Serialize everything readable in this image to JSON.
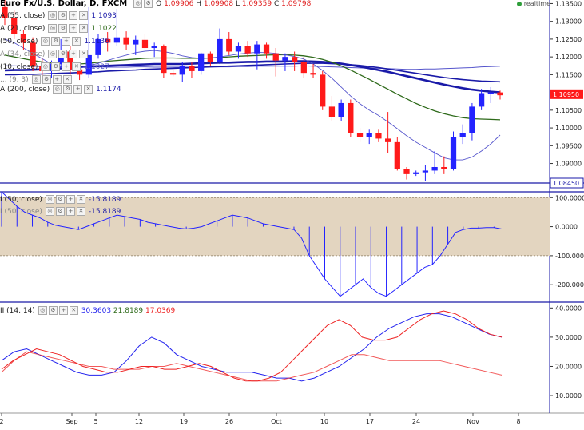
{
  "header": {
    "title": "Euro Fx/U.S. Dollar, D, FXCM",
    "ohlc": {
      "o_label": "O",
      "o": "1.09906",
      "h_label": "H",
      "h": "1.09908",
      "l_label": "L",
      "l": "1.09359",
      "c_label": "C",
      "c": "1.09798"
    },
    "realtime": "realtime"
  },
  "legends": {
    "ma55": {
      "label": "A (55, close)",
      "value": "1.1093"
    },
    "ma21": {
      "label": "A (21, close)",
      "value": "1.1022"
    },
    "ma50": {
      "label": "(50, close)",
      "value": "1.1136"
    },
    "ma34": {
      "label": "A (34, close)",
      "value": ""
    },
    "ma10": {
      "label": "(10, close)",
      "value": "1.1027"
    },
    "ma_x": {
      "label": "... (9, 3)",
      "value": ""
    },
    "ma200": {
      "label": "A (200, close)",
      "value": "1.1174"
    },
    "cci_a": {
      "label": "I (50, close)",
      "value": "-15.8189"
    },
    "cci_b": {
      "label": "I (50, close)",
      "value": "-15.8189"
    },
    "dmi": {
      "label": "II (14, 14)",
      "v1": "30.3603",
      "v2": "21.8189",
      "v3": "17.0369"
    }
  },
  "colors": {
    "up": "#2323ff",
    "down": "#ff1a1a",
    "band": "#e3d5c0",
    "ma_dark": "#1a1aa8",
    "ma_green": "#2e6a1a",
    "ma_thin": "#5555cc",
    "plus_di": "#2222ee",
    "minus_di": "#ee2222"
  },
  "chart_data": [
    {
      "type": "candlestick",
      "title": "Euro Fx/U.S. Dollar, D, FXCM",
      "y_ticks": [
        "1.13500",
        "1.13000",
        "1.12500",
        "1.12000",
        "1.11500",
        "1.11000",
        "1.10500",
        "1.10000",
        "1.09500",
        "1.09000"
      ],
      "ylim": [
        1.0845,
        1.136
      ],
      "price_labels": {
        "last": "1.10950",
        "marker": "1.08450"
      },
      "x_labels": [
        "2",
        "Sep",
        "5",
        "12",
        "19",
        "26",
        "Oct",
        "10",
        "17",
        "24",
        "Nov",
        "8"
      ],
      "candles": [
        {
          "o": 1.134,
          "h": 1.1362,
          "l": 1.129,
          "c": 1.131
        },
        {
          "o": 1.131,
          "h": 1.133,
          "l": 1.125,
          "c": 1.1265
        },
        {
          "o": 1.1265,
          "h": 1.1275,
          "l": 1.122,
          "c": 1.124
        },
        {
          "o": 1.124,
          "h": 1.1255,
          "l": 1.116,
          "c": 1.1175
        },
        {
          "o": 1.1175,
          "h": 1.1195,
          "l": 1.1145,
          "c": 1.116
        },
        {
          "o": 1.116,
          "h": 1.119,
          "l": 1.114,
          "c": 1.118
        },
        {
          "o": 1.118,
          "h": 1.125,
          "l": 1.117,
          "c": 1.1215
        },
        {
          "o": 1.1215,
          "h": 1.123,
          "l": 1.115,
          "c": 1.1165
        },
        {
          "o": 1.1165,
          "h": 1.118,
          "l": 1.1135,
          "c": 1.115
        },
        {
          "o": 1.115,
          "h": 1.134,
          "l": 1.114,
          "c": 1.1205
        },
        {
          "o": 1.1205,
          "h": 1.1265,
          "l": 1.1195,
          "c": 1.125
        },
        {
          "o": 1.125,
          "h": 1.127,
          "l": 1.1215,
          "c": 1.124
        },
        {
          "o": 1.124,
          "h": 1.1335,
          "l": 1.123,
          "c": 1.1255
        },
        {
          "o": 1.1255,
          "h": 1.1272,
          "l": 1.122,
          "c": 1.1235
        },
        {
          "o": 1.1235,
          "h": 1.126,
          "l": 1.1205,
          "c": 1.1248
        },
        {
          "o": 1.1248,
          "h": 1.1265,
          "l": 1.122,
          "c": 1.1225
        },
        {
          "o": 1.1225,
          "h": 1.124,
          "l": 1.12,
          "c": 1.123
        },
        {
          "o": 1.123,
          "h": 1.1235,
          "l": 1.114,
          "c": 1.1155
        },
        {
          "o": 1.1155,
          "h": 1.1165,
          "l": 1.1145,
          "c": 1.115
        },
        {
          "o": 1.115,
          "h": 1.1185,
          "l": 1.113,
          "c": 1.1175
        },
        {
          "o": 1.1175,
          "h": 1.1185,
          "l": 1.114,
          "c": 1.116
        },
        {
          "o": 1.116,
          "h": 1.1212,
          "l": 1.115,
          "c": 1.121
        },
        {
          "o": 1.121,
          "h": 1.1215,
          "l": 1.1175,
          "c": 1.1185
        },
        {
          "o": 1.1185,
          "h": 1.128,
          "l": 1.118,
          "c": 1.125
        },
        {
          "o": 1.125,
          "h": 1.127,
          "l": 1.1205,
          "c": 1.1215
        },
        {
          "o": 1.1215,
          "h": 1.124,
          "l": 1.1195,
          "c": 1.123
        },
        {
          "o": 1.123,
          "h": 1.1245,
          "l": 1.12,
          "c": 1.121
        },
        {
          "o": 1.121,
          "h": 1.1245,
          "l": 1.1165,
          "c": 1.1235
        },
        {
          "o": 1.1235,
          "h": 1.124,
          "l": 1.1195,
          "c": 1.121
        },
        {
          "o": 1.121,
          "h": 1.1225,
          "l": 1.1145,
          "c": 1.119
        },
        {
          "o": 1.119,
          "h": 1.121,
          "l": 1.116,
          "c": 1.12
        },
        {
          "o": 1.12,
          "h": 1.1215,
          "l": 1.116,
          "c": 1.1185
        },
        {
          "o": 1.1185,
          "h": 1.12,
          "l": 1.114,
          "c": 1.1155
        },
        {
          "o": 1.1155,
          "h": 1.118,
          "l": 1.114,
          "c": 1.115
        },
        {
          "o": 1.115,
          "h": 1.116,
          "l": 1.105,
          "c": 1.106
        },
        {
          "o": 1.106,
          "h": 1.109,
          "l": 1.102,
          "c": 1.103
        },
        {
          "o": 1.103,
          "h": 1.108,
          "l": 1.102,
          "c": 1.107
        },
        {
          "o": 1.107,
          "h": 1.108,
          "l": 1.0975,
          "c": 1.0985
        },
        {
          "o": 1.0985,
          "h": 1.1,
          "l": 1.096,
          "c": 1.0975
        },
        {
          "o": 1.0975,
          "h": 1.0995,
          "l": 1.0955,
          "c": 1.0985
        },
        {
          "o": 1.0985,
          "h": 1.0995,
          "l": 1.096,
          "c": 1.097
        },
        {
          "o": 1.097,
          "h": 1.1045,
          "l": 1.093,
          "c": 1.096
        },
        {
          "o": 1.096,
          "h": 1.0975,
          "l": 1.088,
          "c": 1.0885
        },
        {
          "o": 1.0885,
          "h": 1.089,
          "l": 1.0855,
          "c": 1.087
        },
        {
          "o": 1.087,
          "h": 1.088,
          "l": 1.0865,
          "c": 1.0875
        },
        {
          "o": 1.0875,
          "h": 1.0895,
          "l": 1.085,
          "c": 1.088
        },
        {
          "o": 1.088,
          "h": 1.0935,
          "l": 1.087,
          "c": 1.089
        },
        {
          "o": 1.089,
          "h": 1.092,
          "l": 1.087,
          "c": 1.0885
        },
        {
          "o": 1.0885,
          "h": 1.099,
          "l": 1.088,
          "c": 1.0975
        },
        {
          "o": 1.0975,
          "h": 1.101,
          "l": 1.0955,
          "c": 1.0985
        },
        {
          "o": 1.0985,
          "h": 1.107,
          "l": 1.0965,
          "c": 1.106
        },
        {
          "o": 1.106,
          "h": 1.111,
          "l": 1.105,
          "c": 1.1098
        },
        {
          "o": 1.1098,
          "h": 1.1115,
          "l": 1.107,
          "c": 1.11
        },
        {
          "o": 1.11,
          "h": 1.1105,
          "l": 1.108,
          "c": 1.1092
        }
      ],
      "series": [
        {
          "name": "(200, close)",
          "values": [
            1.1175,
            1.1175,
            1.1174,
            1.1174,
            1.1173,
            1.1172,
            1.1173,
            1.1172,
            1.1171,
            1.1171,
            1.1172,
            1.1171,
            1.1171,
            1.1171,
            1.1172,
            1.1172,
            1.1171,
            1.1171,
            1.1171,
            1.1171,
            1.1171,
            1.1171,
            1.1172,
            1.1172,
            1.1172,
            1.1173,
            1.1173,
            1.1174,
            1.1174,
            1.1174,
            1.1174,
            1.1174,
            1.1175,
            1.1174,
            1.1173,
            1.1172,
            1.1171,
            1.117,
            1.1169,
            1.1168,
            1.1168,
            1.1167,
            1.1166,
            1.1165,
            1.1165,
            1.1166,
            1.1166,
            1.1167,
            1.1168,
            1.1169,
            1.117,
            1.1172,
            1.1173,
            1.1174
          ]
        },
        {
          "name": "(50, close)",
          "values": [
            1.1162,
            1.1163,
            1.1163,
            1.1164,
            1.1165,
            1.1166,
            1.1168,
            1.117,
            1.1172,
            1.1173,
            1.1174,
            1.1175,
            1.1176,
            1.1177,
            1.1178,
            1.1179,
            1.118,
            1.118,
            1.118,
            1.118,
            1.1181,
            1.1182,
            1.1183,
            1.1184,
            1.1184,
            1.1185,
            1.1186,
            1.1186,
            1.1187,
            1.1187,
            1.1187,
            1.1188,
            1.1188,
            1.1187,
            1.1186,
            1.1184,
            1.1181,
            1.1177,
            1.1173,
            1.1168,
            1.1163,
            1.1158,
            1.1152,
            1.1146,
            1.114,
            1.1134,
            1.1128,
            1.1122,
            1.1117,
            1.1112,
            1.1108,
            1.1105,
            1.1102,
            1.11
          ]
        },
        {
          "name": "(55, close)",
          "values": [
            1.115,
            1.115,
            1.1151,
            1.1151,
            1.1152,
            1.1153,
            1.1154,
            1.1155,
            1.1156,
            1.1157,
            1.1158,
            1.116,
            1.1161,
            1.1162,
            1.1163,
            1.1165,
            1.1166,
            1.1167,
            1.1168,
            1.1169,
            1.117,
            1.1171,
            1.1172,
            1.1173,
            1.1174,
            1.1175,
            1.1176,
            1.1177,
            1.1178,
            1.1179,
            1.118,
            1.1181,
            1.1182,
            1.1182,
            1.1182,
            1.1181,
            1.118,
            1.1178,
            1.1176,
            1.1173,
            1.117,
            1.1166,
            1.1162,
            1.1158,
            1.1154,
            1.115,
            1.1146,
            1.1142,
            1.1139,
            1.1136,
            1.1134,
            1.1132,
            1.1131,
            1.113
          ]
        },
        {
          "name": "(34, close)",
          "values": [
            1.1205,
            1.12,
            1.1195,
            1.119,
            1.1186,
            1.1183,
            1.1181,
            1.118,
            1.118,
            1.1182,
            1.1185,
            1.1188,
            1.119,
            1.1192,
            1.1194,
            1.1196,
            1.1197,
            1.1197,
            1.1197,
            1.1196,
            1.1196,
            1.1196,
            1.1197,
            1.1198,
            1.12,
            1.1202,
            1.1203,
            1.1204,
            1.1205,
            1.1206,
            1.1206,
            1.1205,
            1.1203,
            1.1199,
            1.1193,
            1.1185,
            1.1175,
            1.1163,
            1.115,
            1.1137,
            1.1123,
            1.1109,
            1.1095,
            1.1082,
            1.1069,
            1.1058,
            1.1048,
            1.104,
            1.1034,
            1.1029,
            1.1026,
            1.1025,
            1.1024,
            1.1023
          ]
        },
        {
          "name": "(10, close)",
          "values": [
            1.125,
            1.124,
            1.1225,
            1.121,
            1.1195,
            1.118,
            1.117,
            1.1165,
            1.1168,
            1.1175,
            1.1182,
            1.119,
            1.1198,
            1.1205,
            1.1212,
            1.1216,
            1.1218,
            1.1215,
            1.121,
            1.1203,
            1.1198,
            1.1196,
            1.1197,
            1.12,
            1.1204,
            1.1208,
            1.1211,
            1.1213,
            1.1212,
            1.121,
            1.1206,
            1.1201,
            1.1194,
            1.118,
            1.1162,
            1.114,
            1.1115,
            1.109,
            1.1068,
            1.105,
            1.1035,
            1.1017,
            1.0998,
            1.0978,
            1.096,
            1.0945,
            1.093,
            1.0916,
            1.091,
            1.091,
            1.0918,
            1.0935,
            1.0955,
            1.098
          ]
        }
      ]
    },
    {
      "type": "histogram",
      "title": "(50, close)",
      "y_ticks": [
        "100.0000",
        "0.0000",
        "-100.0000",
        "-200.0000"
      ],
      "ylim": [
        -260,
        120
      ],
      "band": [
        -100,
        100
      ],
      "values": [
        120,
        95,
        70,
        50,
        40,
        30,
        15,
        5,
        0,
        -5,
        -10,
        0,
        10,
        20,
        30,
        40,
        35,
        30,
        25,
        15,
        10,
        5,
        0,
        -5,
        -8,
        -5,
        0,
        10,
        20,
        30,
        40,
        35,
        30,
        20,
        10,
        5,
        0,
        -5,
        -10,
        -40,
        -100,
        -140,
        -180,
        -210,
        -240,
        -220,
        -200,
        -180,
        -210,
        -230,
        -240,
        -220,
        -200,
        -180,
        -160,
        -140,
        -130,
        -100,
        -60,
        -20,
        -10,
        -5,
        -5,
        -3,
        -3,
        -8
      ],
      "last_value": -15.8189
    },
    {
      "type": "line",
      "title": "(14, 14)",
      "y_ticks": [
        "40.0000",
        "30.0000",
        "20.0000",
        "10.0000"
      ],
      "ylim": [
        4,
        42
      ],
      "series": [
        {
          "name": "30.3603",
          "values": [
            22,
            25,
            26,
            24,
            22,
            20,
            18,
            17,
            17,
            18,
            22,
            27,
            30,
            28,
            24,
            22,
            20,
            19,
            18,
            18,
            18,
            17,
            16,
            16,
            15,
            16,
            18,
            20,
            23,
            26,
            30,
            33,
            35,
            37,
            38,
            38,
            37,
            35,
            33,
            31,
            30
          ]
        },
        {
          "name": "21.8189",
          "values": [
            19,
            22,
            24,
            26,
            25,
            24,
            22,
            20,
            19,
            18,
            18,
            19,
            20,
            20,
            19,
            19,
            20,
            21,
            20,
            18,
            16,
            15,
            15,
            16,
            18,
            22,
            26,
            30,
            34,
            36,
            34,
            30,
            29,
            29,
            30,
            33,
            36,
            38,
            39,
            38,
            36,
            33,
            31,
            30
          ]
        },
        {
          "name": "17.0369",
          "values": [
            18,
            22,
            25,
            24,
            23,
            22,
            21,
            20,
            20,
            19,
            19,
            19,
            20,
            20,
            21,
            20,
            19,
            18,
            17,
            16,
            15,
            15,
            15,
            16,
            17,
            18,
            20,
            22,
            24,
            24,
            23,
            22,
            22,
            22,
            22,
            22,
            21,
            20,
            19,
            18,
            17
          ]
        }
      ],
      "x_labels": [
        "2",
        "Sep",
        "5",
        "12",
        "19",
        "26",
        "Oct",
        "10",
        "17",
        "24",
        "Nov",
        "8"
      ]
    }
  ]
}
